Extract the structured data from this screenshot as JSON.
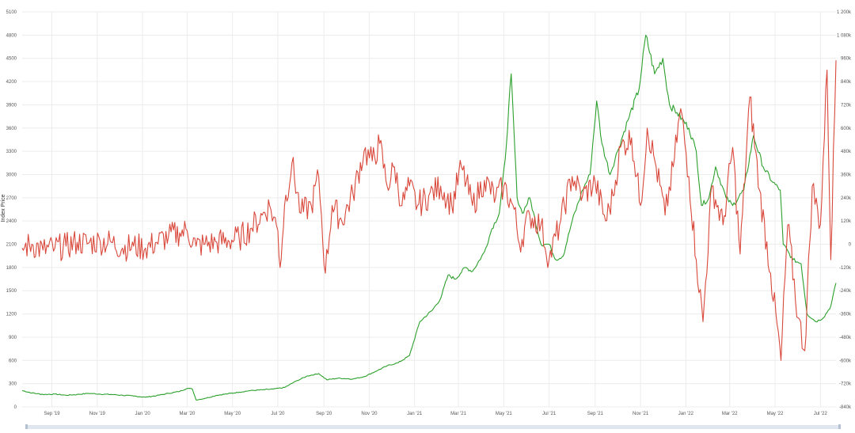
{
  "chart_data": {
    "type": "line",
    "ylabel": "Index Price",
    "ylabel_right": "",
    "grid": true,
    "legend": "none",
    "ylim_left": [
      0,
      5100
    ],
    "ylim_right": [
      -840000,
      1200000
    ],
    "yticks_left": [
      "0",
      "300",
      "600",
      "900",
      "1200",
      "1500",
      "1800",
      "2100",
      "2400",
      "2700",
      "3000",
      "3300",
      "3600",
      "3900",
      "4200",
      "4500",
      "4800",
      "5100"
    ],
    "yticks_right": [
      "-840k",
      "-720k",
      "-600k",
      "-480k",
      "-360k",
      "-240k",
      "-120k",
      "0",
      "120k",
      "240k",
      "360k",
      "480k",
      "600k",
      "720k",
      "840k",
      "960k",
      "1 080k",
      "1 200k"
    ],
    "xticks": [
      "Sep '19",
      "Nov '19",
      "Jan '20",
      "Mar '20",
      "May '20",
      "Jul '20",
      "Sep '20",
      "Nov '20",
      "Jan '21",
      "Mar '21",
      "May '21",
      "Jul '21",
      "Sep '21",
      "Nov '21",
      "Jan '22",
      "Mar '22",
      "May '22",
      "Jul '22"
    ],
    "x_range": [
      "2019-07-23",
      "2022-07-22"
    ],
    "series": [
      {
        "axis": "left",
        "color": "#2ca02c",
        "points": [
          [
            "2019-07-23",
            210
          ],
          [
            "2019-08-05",
            180
          ],
          [
            "2019-08-20",
            160
          ],
          [
            "2019-09-05",
            165
          ],
          [
            "2019-09-20",
            150
          ],
          [
            "2019-10-05",
            160
          ],
          [
            "2019-10-20",
            175
          ],
          [
            "2019-11-05",
            165
          ],
          [
            "2019-11-20",
            160
          ],
          [
            "2019-12-05",
            150
          ],
          [
            "2019-12-20",
            140
          ],
          [
            "2020-01-05",
            125
          ],
          [
            "2020-01-20",
            145
          ],
          [
            "2020-02-05",
            175
          ],
          [
            "2020-02-20",
            200
          ],
          [
            "2020-03-01",
            240
          ],
          [
            "2020-03-08",
            230
          ],
          [
            "2020-03-13",
            90
          ],
          [
            "2020-03-25",
            110
          ],
          [
            "2020-04-10",
            150
          ],
          [
            "2020-04-25",
            170
          ],
          [
            "2020-05-10",
            190
          ],
          [
            "2020-05-25",
            210
          ],
          [
            "2020-06-10",
            220
          ],
          [
            "2020-06-25",
            230
          ],
          [
            "2020-07-10",
            250
          ],
          [
            "2020-07-25",
            330
          ],
          [
            "2020-08-10",
            400
          ],
          [
            "2020-08-25",
            430
          ],
          [
            "2020-09-05",
            350
          ],
          [
            "2020-09-20",
            370
          ],
          [
            "2020-10-10",
            360
          ],
          [
            "2020-10-25",
            390
          ],
          [
            "2020-11-10",
            460
          ],
          [
            "2020-11-25",
            530
          ],
          [
            "2020-12-10",
            570
          ],
          [
            "2020-12-25",
            660
          ],
          [
            "2021-01-08",
            1100
          ],
          [
            "2021-01-25",
            1250
          ],
          [
            "2021-02-05",
            1400
          ],
          [
            "2021-02-15",
            1700
          ],
          [
            "2021-02-25",
            1650
          ],
          [
            "2021-03-10",
            1800
          ],
          [
            "2021-03-20",
            1750
          ],
          [
            "2021-04-05",
            2000
          ],
          [
            "2021-04-15",
            2300
          ],
          [
            "2021-04-25",
            2500
          ],
          [
            "2021-05-03",
            3200
          ],
          [
            "2021-05-11",
            4300
          ],
          [
            "2021-05-19",
            2700
          ],
          [
            "2021-05-26",
            2500
          ],
          [
            "2021-06-05",
            2700
          ],
          [
            "2021-06-20",
            2100
          ],
          [
            "2021-07-01",
            2100
          ],
          [
            "2021-07-10",
            1900
          ],
          [
            "2021-07-20",
            1950
          ],
          [
            "2021-08-01",
            2400
          ],
          [
            "2021-08-15",
            2800
          ],
          [
            "2021-08-25",
            3000
          ],
          [
            "2021-09-03",
            3950
          ],
          [
            "2021-09-10",
            3400
          ],
          [
            "2021-09-21",
            3000
          ],
          [
            "2021-10-01",
            3300
          ],
          [
            "2021-10-15",
            3700
          ],
          [
            "2021-10-30",
            4100
          ],
          [
            "2021-11-08",
            4800
          ],
          [
            "2021-11-20",
            4300
          ],
          [
            "2021-12-01",
            4500
          ],
          [
            "2021-12-10",
            3900
          ],
          [
            "2021-12-20",
            3800
          ],
          [
            "2022-01-05",
            3600
          ],
          [
            "2022-01-15",
            3300
          ],
          [
            "2022-01-22",
            2600
          ],
          [
            "2022-02-01",
            2700
          ],
          [
            "2022-02-10",
            3100
          ],
          [
            "2022-02-24",
            2700
          ],
          [
            "2022-03-05",
            2600
          ],
          [
            "2022-03-20",
            2800
          ],
          [
            "2022-04-02",
            3500
          ],
          [
            "2022-04-15",
            3100
          ],
          [
            "2022-04-28",
            2900
          ],
          [
            "2022-05-08",
            2800
          ],
          [
            "2022-05-12",
            2100
          ],
          [
            "2022-05-25",
            1900
          ],
          [
            "2022-06-05",
            1850
          ],
          [
            "2022-06-13",
            1200
          ],
          [
            "2022-06-25",
            1100
          ],
          [
            "2022-07-05",
            1150
          ],
          [
            "2022-07-15",
            1300
          ],
          [
            "2022-07-22",
            1600
          ]
        ]
      },
      {
        "axis": "right",
        "color": "#d9483b",
        "points": [
          [
            "2019-07-23",
            -20000
          ],
          [
            "2019-08-05",
            0
          ],
          [
            "2019-08-20",
            -30000
          ],
          [
            "2019-09-05",
            -20000
          ],
          [
            "2019-09-20",
            -10000
          ],
          [
            "2019-10-05",
            10000
          ],
          [
            "2019-10-20",
            5000
          ],
          [
            "2019-11-05",
            15000
          ],
          [
            "2019-11-20",
            10000
          ],
          [
            "2019-12-05",
            -20000
          ],
          [
            "2019-12-20",
            -10000
          ],
          [
            "2020-01-05",
            -20000
          ],
          [
            "2020-01-20",
            10000
          ],
          [
            "2020-02-05",
            40000
          ],
          [
            "2020-02-20",
            60000
          ],
          [
            "2020-03-01",
            70000
          ],
          [
            "2020-03-13",
            -10000
          ],
          [
            "2020-03-25",
            0
          ],
          [
            "2020-04-10",
            10000
          ],
          [
            "2020-04-25",
            20000
          ],
          [
            "2020-05-10",
            30000
          ],
          [
            "2020-05-25",
            80000
          ],
          [
            "2020-06-10",
            150000
          ],
          [
            "2020-06-20",
            200000
          ],
          [
            "2020-07-01",
            70000
          ],
          [
            "2020-07-04",
            -120000
          ],
          [
            "2020-07-10",
            200000
          ],
          [
            "2020-07-20",
            420000
          ],
          [
            "2020-08-01",
            160000
          ],
          [
            "2020-08-15",
            200000
          ],
          [
            "2020-08-25",
            350000
          ],
          [
            "2020-09-03",
            -150000
          ],
          [
            "2020-09-12",
            200000
          ],
          [
            "2020-09-25",
            120000
          ],
          [
            "2020-10-10",
            260000
          ],
          [
            "2020-10-25",
            480000
          ],
          [
            "2020-11-05",
            430000
          ],
          [
            "2020-11-15",
            520000
          ],
          [
            "2020-11-25",
            300000
          ],
          [
            "2020-12-05",
            400000
          ],
          [
            "2020-12-15",
            200000
          ],
          [
            "2020-12-25",
            300000
          ],
          [
            "2021-01-05",
            200000
          ],
          [
            "2021-01-20",
            250000
          ],
          [
            "2021-02-05",
            300000
          ],
          [
            "2021-02-20",
            200000
          ],
          [
            "2021-03-05",
            400000
          ],
          [
            "2021-03-20",
            200000
          ],
          [
            "2021-04-05",
            330000
          ],
          [
            "2021-04-20",
            240000
          ],
          [
            "2021-05-01",
            300000
          ],
          [
            "2021-05-15",
            180000
          ],
          [
            "2021-05-22",
            0
          ],
          [
            "2021-06-05",
            150000
          ],
          [
            "2021-06-20",
            100000
          ],
          [
            "2021-07-01",
            -80000
          ],
          [
            "2021-07-15",
            100000
          ],
          [
            "2021-08-01",
            350000
          ],
          [
            "2021-08-15",
            250000
          ],
          [
            "2021-09-01",
            320000
          ],
          [
            "2021-09-15",
            120000
          ],
          [
            "2021-09-25",
            250000
          ],
          [
            "2021-10-05",
            500000
          ],
          [
            "2021-10-20",
            550000
          ],
          [
            "2021-11-01",
            200000
          ],
          [
            "2021-11-10",
            600000
          ],
          [
            "2021-11-22",
            400000
          ],
          [
            "2021-12-04",
            150000
          ],
          [
            "2021-12-15",
            400000
          ],
          [
            "2021-12-25",
            700000
          ],
          [
            "2022-01-05",
            350000
          ],
          [
            "2022-01-15",
            -80000
          ],
          [
            "2022-01-24",
            -400000
          ],
          [
            "2022-02-05",
            300000
          ],
          [
            "2022-02-20",
            100000
          ],
          [
            "2022-03-05",
            500000
          ],
          [
            "2022-03-15",
            -50000
          ],
          [
            "2022-03-28",
            760000
          ],
          [
            "2022-04-10",
            280000
          ],
          [
            "2022-04-25",
            -150000
          ],
          [
            "2022-05-09",
            -600000
          ],
          [
            "2022-05-18",
            100000
          ],
          [
            "2022-06-01",
            -380000
          ],
          [
            "2022-06-10",
            -550000
          ],
          [
            "2022-06-20",
            300000
          ],
          [
            "2022-07-01",
            100000
          ],
          [
            "2022-07-10",
            900000
          ],
          [
            "2022-07-15",
            -80000
          ],
          [
            "2022-07-22",
            950000
          ]
        ]
      }
    ]
  }
}
